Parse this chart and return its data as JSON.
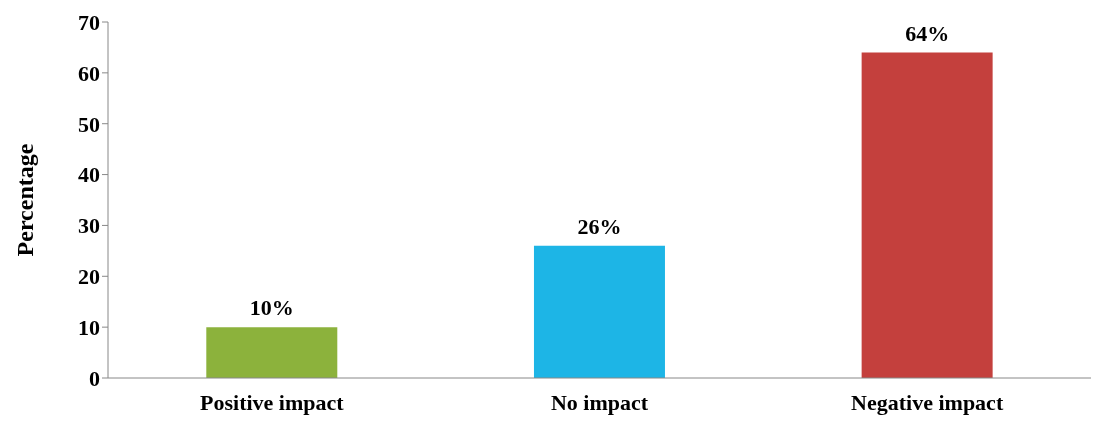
{
  "chart_data": {
    "type": "bar",
    "ylabel": "Percentage",
    "categories": [
      "Positive impact",
      "No impact",
      "Negative impact"
    ],
    "values": [
      10,
      26,
      64
    ],
    "colors": [
      "#8cb23c",
      "#1db5e6",
      "#c4403d"
    ],
    "value_labels": [
      "10%",
      "26%",
      "64%"
    ],
    "ylim": [
      0,
      70
    ],
    "yticks": [
      0,
      10,
      20,
      30,
      40,
      50,
      60,
      70
    ],
    "grid": false
  }
}
